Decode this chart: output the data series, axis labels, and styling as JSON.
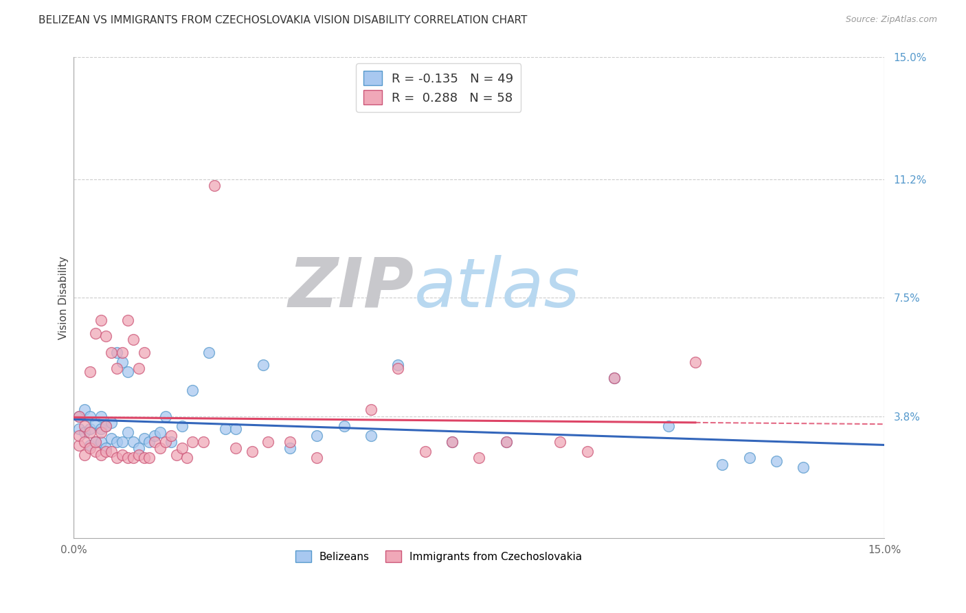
{
  "title": "BELIZEAN VS IMMIGRANTS FROM CZECHOSLOVAKIA VISION DISABILITY CORRELATION CHART",
  "source": "Source: ZipAtlas.com",
  "ylabel": "Vision Disability",
  "xlim": [
    0.0,
    0.15
  ],
  "ylim": [
    0.0,
    0.15
  ],
  "xtick_labels": [
    "0.0%",
    "15.0%"
  ],
  "ytick_labels": [
    "3.8%",
    "7.5%",
    "11.2%",
    "15.0%"
  ],
  "ytick_values": [
    0.038,
    0.075,
    0.112,
    0.15
  ],
  "grid_color": "#cccccc",
  "background_color": "#ffffff",
  "blue_dot_fill": "#a8c8f0",
  "blue_dot_edge": "#5599cc",
  "blue_trend_color": "#3366bb",
  "pink_dot_fill": "#f0a8b8",
  "pink_dot_edge": "#cc5577",
  "pink_trend_color": "#dd4466",
  "blue_R": -0.135,
  "blue_N": 49,
  "pink_R": 0.288,
  "pink_N": 58,
  "blue_x": [
    0.001,
    0.001,
    0.002,
    0.002,
    0.003,
    0.003,
    0.003,
    0.004,
    0.004,
    0.005,
    0.005,
    0.005,
    0.006,
    0.006,
    0.007,
    0.007,
    0.008,
    0.008,
    0.009,
    0.009,
    0.01,
    0.01,
    0.011,
    0.012,
    0.013,
    0.014,
    0.015,
    0.016,
    0.017,
    0.018,
    0.02,
    0.022,
    0.025,
    0.028,
    0.03,
    0.035,
    0.04,
    0.045,
    0.05,
    0.055,
    0.06,
    0.07,
    0.08,
    0.1,
    0.11,
    0.12,
    0.125,
    0.13,
    0.135
  ],
  "blue_y": [
    0.034,
    0.038,
    0.033,
    0.04,
    0.029,
    0.034,
    0.038,
    0.03,
    0.036,
    0.03,
    0.034,
    0.038,
    0.028,
    0.035,
    0.031,
    0.036,
    0.03,
    0.058,
    0.03,
    0.055,
    0.033,
    0.052,
    0.03,
    0.028,
    0.031,
    0.03,
    0.032,
    0.033,
    0.038,
    0.03,
    0.035,
    0.046,
    0.058,
    0.034,
    0.034,
    0.054,
    0.028,
    0.032,
    0.035,
    0.032,
    0.054,
    0.03,
    0.03,
    0.05,
    0.035,
    0.023,
    0.025,
    0.024,
    0.022
  ],
  "pink_x": [
    0.001,
    0.001,
    0.001,
    0.002,
    0.002,
    0.002,
    0.003,
    0.003,
    0.003,
    0.004,
    0.004,
    0.004,
    0.005,
    0.005,
    0.005,
    0.006,
    0.006,
    0.006,
    0.007,
    0.007,
    0.008,
    0.008,
    0.009,
    0.009,
    0.01,
    0.01,
    0.011,
    0.011,
    0.012,
    0.012,
    0.013,
    0.013,
    0.014,
    0.015,
    0.016,
    0.017,
    0.018,
    0.019,
    0.02,
    0.021,
    0.022,
    0.024,
    0.026,
    0.03,
    0.033,
    0.036,
    0.04,
    0.045,
    0.055,
    0.06,
    0.065,
    0.07,
    0.075,
    0.08,
    0.09,
    0.095,
    0.1,
    0.115
  ],
  "pink_y": [
    0.029,
    0.032,
    0.038,
    0.026,
    0.03,
    0.035,
    0.028,
    0.033,
    0.052,
    0.027,
    0.03,
    0.064,
    0.026,
    0.033,
    0.068,
    0.027,
    0.035,
    0.063,
    0.027,
    0.058,
    0.025,
    0.053,
    0.026,
    0.058,
    0.025,
    0.068,
    0.025,
    0.062,
    0.026,
    0.053,
    0.025,
    0.058,
    0.025,
    0.03,
    0.028,
    0.03,
    0.032,
    0.026,
    0.028,
    0.025,
    0.03,
    0.03,
    0.11,
    0.028,
    0.027,
    0.03,
    0.03,
    0.025,
    0.04,
    0.053,
    0.027,
    0.03,
    0.025,
    0.03,
    0.03,
    0.027,
    0.05,
    0.055
  ],
  "watermark_zip_color": "#c8c8cc",
  "watermark_atlas_color": "#b8d8f0",
  "title_fontsize": 11,
  "axis_label_fontsize": 11,
  "tick_fontsize": 11,
  "source_fontsize": 9
}
